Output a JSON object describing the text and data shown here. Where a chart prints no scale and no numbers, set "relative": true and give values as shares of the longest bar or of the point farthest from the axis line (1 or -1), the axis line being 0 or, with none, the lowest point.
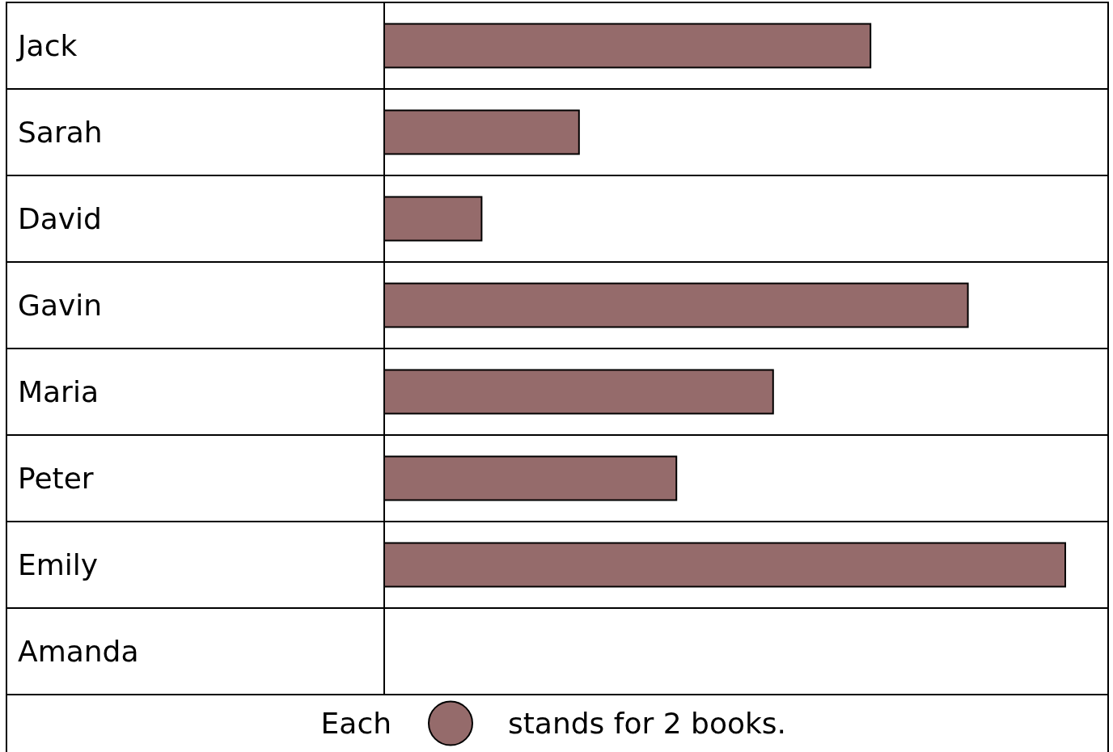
{
  "chart_data": {
    "type": "bar",
    "orientation": "horizontal",
    "relative": true,
    "categories": [
      "Jack",
      "Sarah",
      "David",
      "Gavin",
      "Maria",
      "Peter",
      "Emily",
      "Amanda"
    ],
    "values": [
      0.714,
      0.286,
      0.143,
      0.857,
      0.571,
      0.429,
      1,
      0
    ],
    "color": "#956b6b",
    "annotations": [
      "Each",
      "stands for 2 books."
    ]
  }
}
